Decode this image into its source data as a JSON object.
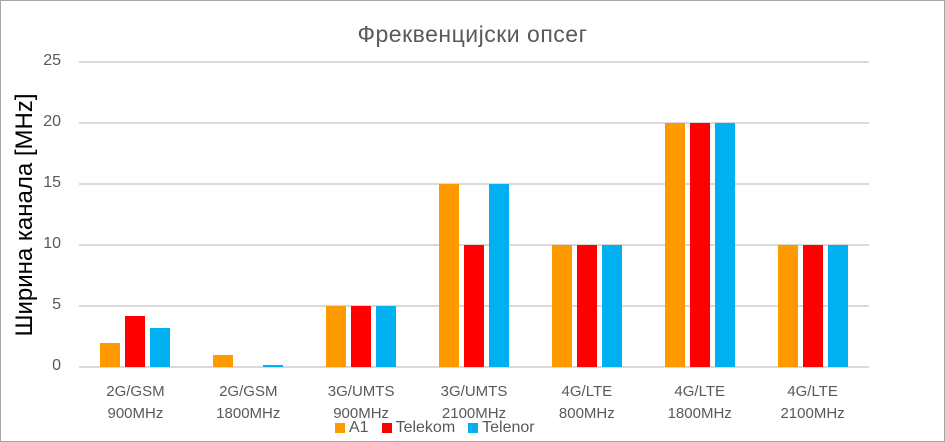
{
  "chart_data": {
    "type": "bar",
    "title": "Фреквенцијски опсег",
    "xlabel": "",
    "ylabel": "Ширина канала [MHz]",
    "ylim": [
      0,
      25
    ],
    "yticks": [
      0,
      5,
      10,
      15,
      20,
      25
    ],
    "grid": true,
    "legend_position": "bottom",
    "categories": [
      [
        "2G/GSM",
        "900MHz"
      ],
      [
        "2G/GSM",
        "1800MHz"
      ],
      [
        "3G/UMTS",
        "900MHz"
      ],
      [
        "3G/UMTS",
        "2100MHz"
      ],
      [
        "4G/LTE",
        "800MHz"
      ],
      [
        "4G/LTE",
        "1800MHz"
      ],
      [
        "4G/LTE",
        "2100MHz"
      ]
    ],
    "series": [
      {
        "name": "A1",
        "color": "#FF9900",
        "values": [
          2.0,
          1.0,
          5,
          15,
          10,
          20,
          10
        ]
      },
      {
        "name": "Telekom",
        "color": "#FF0000",
        "values": [
          4.2,
          0,
          5,
          10,
          10,
          20,
          10
        ]
      },
      {
        "name": "Telenor",
        "color": "#00B0F0",
        "values": [
          3.2,
          0.2,
          5,
          15,
          10,
          20,
          10
        ]
      }
    ]
  }
}
